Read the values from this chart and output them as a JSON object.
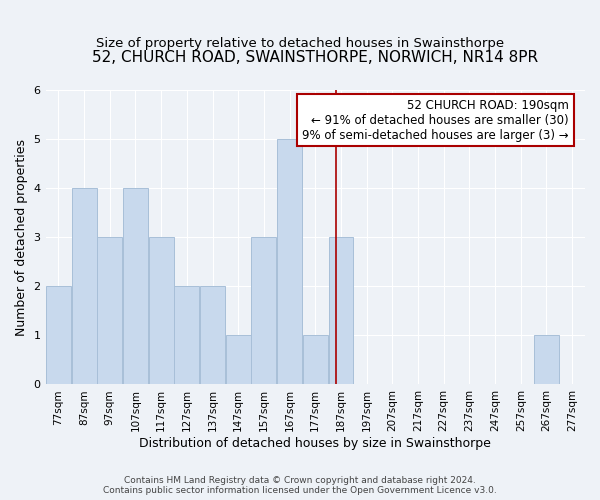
{
  "title": "52, CHURCH ROAD, SWAINSTHORPE, NORWICH, NR14 8PR",
  "subtitle": "Size of property relative to detached houses in Swainsthorpe",
  "xlabel": "Distribution of detached houses by size in Swainsthorpe",
  "ylabel": "Number of detached properties",
  "footer_line1": "Contains HM Land Registry data © Crown copyright and database right 2024.",
  "footer_line2": "Contains public sector information licensed under the Open Government Licence v3.0.",
  "bin_edges": [
    77,
    87,
    97,
    107,
    117,
    127,
    137,
    147,
    157,
    167,
    177,
    187,
    197,
    207,
    217,
    227,
    237,
    247,
    257,
    267,
    277
  ],
  "counts": [
    2,
    4,
    3,
    4,
    3,
    2,
    2,
    1,
    3,
    5,
    1,
    3,
    0,
    0,
    0,
    0,
    0,
    0,
    0,
    1
  ],
  "bar_color": "#c8d9ed",
  "bar_edgecolor": "#a8bfd8",
  "highlight_value": 190,
  "highlight_color": "#aa0000",
  "annotation_title": "52 CHURCH ROAD: 190sqm",
  "annotation_line1": "← 91% of detached houses are smaller (30)",
  "annotation_line2": "9% of semi-detached houses are larger (3) →",
  "annotation_box_edgecolor": "#aa0000",
  "annotation_box_facecolor": "#ffffff",
  "ylim": [
    0,
    6
  ],
  "xlim_left": 77,
  "xlim_right": 287,
  "background_color": "#eef2f7",
  "grid_color": "#ffffff",
  "title_fontsize": 11,
  "subtitle_fontsize": 9.5,
  "tick_label_fontsize": 7.5,
  "axis_label_fontsize": 9,
  "footer_fontsize": 6.5
}
